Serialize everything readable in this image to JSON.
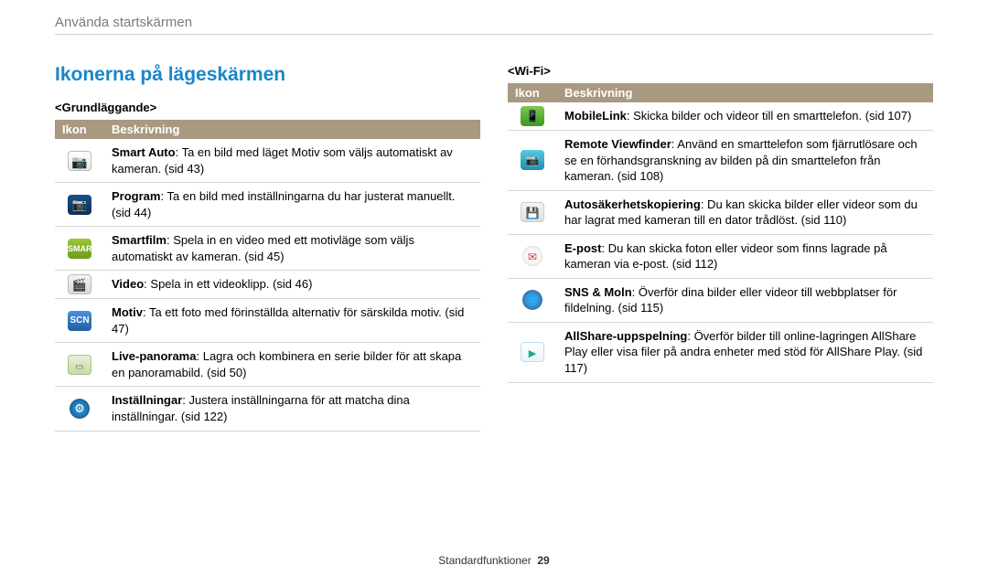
{
  "breadcrumb": "Använda startskärmen",
  "section_title": "Ikonerna på lägeskärmen",
  "footer_label": "Standardfunktioner",
  "page_number": "29",
  "header_icon": "Ikon",
  "header_desc": "Beskrivning",
  "colors": {
    "accent": "#1a86c8",
    "table_header_bg": "#a99980",
    "table_header_fg": "#ffffff",
    "divider": "#d7d7d7",
    "breadcrumb": "#7a7a7a"
  },
  "left": {
    "heading": "<Grundläggande>",
    "rows": [
      {
        "icon": "camera",
        "bold": "Smart Auto",
        "rest": ": Ta en bild med läget Motiv som väljs automatiskt av kameran. (sid 43)"
      },
      {
        "icon": "program",
        "bold": "Program",
        "rest": ": Ta en bild med inställningarna du har justerat manuellt. (sid 44)"
      },
      {
        "icon": "smartfilm",
        "bold": "Smartfilm",
        "rest": ": Spela in en video med ett motivläge som väljs automatiskt av kameran. (sid 45)"
      },
      {
        "icon": "video",
        "bold": "Video",
        "rest": ": Spela in ett videoklipp. (sid 46)"
      },
      {
        "icon": "motiv",
        "bold": "Motiv",
        "rest": ": Ta ett foto med förinställda alternativ för särskilda motiv. (sid 47)"
      },
      {
        "icon": "pano",
        "bold": "Live-panorama",
        "rest": ": Lagra och kombinera en serie bilder för att skapa en panoramabild. (sid 50)"
      },
      {
        "icon": "gear",
        "bold": "Inställningar",
        "rest": ": Justera inställningarna för att matcha dina inställningar. (sid 122)"
      }
    ]
  },
  "right": {
    "heading": "<Wi-Fi>",
    "rows": [
      {
        "icon": "mobile",
        "bold": "MobileLink",
        "rest": ": Skicka bilder och videor till en smarttelefon. (sid 107)"
      },
      {
        "icon": "remote",
        "bold": "Remote Viewfinder",
        "rest": ": Använd en smarttelefon som fjärrutlösare och se en förhandsgranskning av bilden på din smarttelefon från kameran. (sid 108)"
      },
      {
        "icon": "backup",
        "bold": "Autosäkerhetskopiering",
        "rest": ": Du kan skicka bilder eller videor som du har lagrat med kameran till en dator trådlöst. (sid 110)"
      },
      {
        "icon": "email",
        "bold": "E-post",
        "rest": ": Du kan skicka foton eller videor som finns lagrade på kameran via e-post. (sid 112)"
      },
      {
        "icon": "sns",
        "bold": "SNS & Moln",
        "rest": ": Överför dina bilder eller videor till webbplatser för fildelning. (sid 115)"
      },
      {
        "icon": "allshare",
        "bold": "AllShare-uppspelning",
        "rest": ": Överför bilder till online-lagringen AllShare Play eller visa filer på andra enheter med stöd för AllShare Play. (sid 117)"
      }
    ]
  }
}
